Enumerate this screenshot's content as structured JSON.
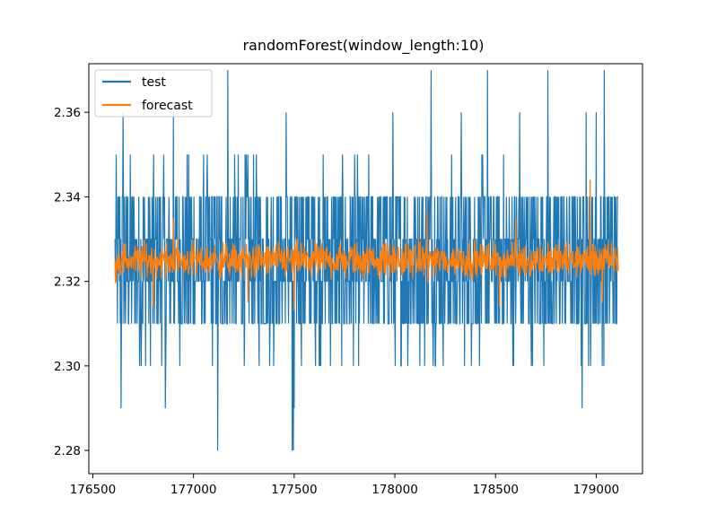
{
  "chart_data": {
    "type": "line",
    "title": "randomForest(window_length:10)",
    "xlabel": "",
    "ylabel": "",
    "xlim": [
      176480,
      179230
    ],
    "ylim": [
      2.2745,
      2.3715
    ],
    "x_ticks": [
      176500,
      177000,
      177500,
      178000,
      178500,
      179000
    ],
    "x_tick_labels": [
      "176500",
      "177000",
      "177500",
      "178000",
      "178500",
      "179000"
    ],
    "y_ticks": [
      2.28,
      2.3,
      2.32,
      2.34,
      2.36
    ],
    "y_tick_labels": [
      "2.28",
      "2.30",
      "2.32",
      "2.34",
      "2.36"
    ],
    "grid": false,
    "legend_position": "top-left",
    "x_range": [
      176610,
      179110
    ],
    "series": [
      {
        "name": "test",
        "color": "#1f77b4",
        "typical_range": [
          2.31,
          2.34
        ],
        "outer_range": [
          2.3,
          2.35
        ],
        "spikes": [
          {
            "x": 177120,
            "y": 2.28
          },
          {
            "x": 177490,
            "y": 2.28
          },
          {
            "x": 177495,
            "y": 2.28
          },
          {
            "x": 176640,
            "y": 2.29
          },
          {
            "x": 176860,
            "y": 2.29
          },
          {
            "x": 177500,
            "y": 2.29
          },
          {
            "x": 178930,
            "y": 2.29
          },
          {
            "x": 177170,
            "y": 2.37
          },
          {
            "x": 178180,
            "y": 2.37
          },
          {
            "x": 178460,
            "y": 2.37
          },
          {
            "x": 178760,
            "y": 2.37
          },
          {
            "x": 179040,
            "y": 2.37
          },
          {
            "x": 176650,
            "y": 2.36
          },
          {
            "x": 176900,
            "y": 2.36
          },
          {
            "x": 177460,
            "y": 2.36
          },
          {
            "x": 177990,
            "y": 2.36
          },
          {
            "x": 178330,
            "y": 2.36
          },
          {
            "x": 178620,
            "y": 2.36
          },
          {
            "x": 178950,
            "y": 2.36
          },
          {
            "x": 179000,
            "y": 2.36
          }
        ]
      },
      {
        "name": "forecast",
        "color": "#ff7f0e",
        "mean": 2.325,
        "typical_range": [
          2.319,
          2.331
        ],
        "spikes": [
          {
            "x": 178970,
            "y": 2.344
          },
          {
            "x": 178160,
            "y": 2.337
          },
          {
            "x": 178600,
            "y": 2.335
          },
          {
            "x": 176900,
            "y": 2.335
          },
          {
            "x": 177500,
            "y": 2.313
          },
          {
            "x": 176800,
            "y": 2.314
          },
          {
            "x": 178520,
            "y": 2.314
          },
          {
            "x": 179030,
            "y": 2.315
          },
          {
            "x": 177270,
            "y": 2.315
          }
        ]
      }
    ]
  }
}
